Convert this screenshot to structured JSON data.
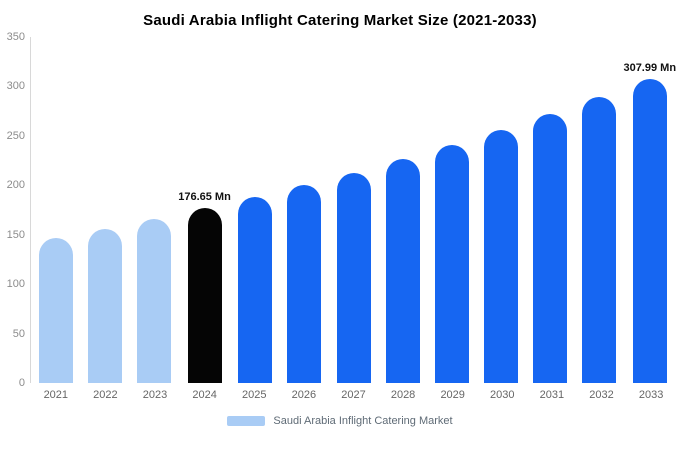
{
  "legend": {
    "label": "Saudi Arabia Inflight Catering Market",
    "swatch_color": "#a9ccf5"
  },
  "chart_data": {
    "type": "bar",
    "title": "Saudi Arabia Inflight Catering Market Size (2021-2033)",
    "unit": "Mn",
    "xlabel": "",
    "ylabel": "",
    "ylim": [
      0,
      350
    ],
    "yticks": [
      0,
      50,
      100,
      150,
      200,
      250,
      300,
      350
    ],
    "grid": false,
    "legend_position": "bottom",
    "colors": {
      "historical": "#a9ccf5",
      "highlight": "#050505",
      "forecast": "#1666f2"
    },
    "points": [
      {
        "year": "2021",
        "value": 146.8,
        "segment": "historical"
      },
      {
        "year": "2022",
        "value": 156.2,
        "segment": "historical"
      },
      {
        "year": "2023",
        "value": 166.1,
        "segment": "historical"
      },
      {
        "year": "2024",
        "value": 176.65,
        "segment": "highlight",
        "label": "176.65 Mn"
      },
      {
        "year": "2025",
        "value": 187.9,
        "segment": "forecast"
      },
      {
        "year": "2026",
        "value": 199.9,
        "segment": "forecast"
      },
      {
        "year": "2027",
        "value": 212.6,
        "segment": "forecast"
      },
      {
        "year": "2028",
        "value": 226.2,
        "segment": "forecast"
      },
      {
        "year": "2029",
        "value": 240.6,
        "segment": "forecast"
      },
      {
        "year": "2030",
        "value": 255.9,
        "segment": "forecast"
      },
      {
        "year": "2031",
        "value": 272.2,
        "segment": "forecast"
      },
      {
        "year": "2032",
        "value": 289.5,
        "segment": "forecast"
      },
      {
        "year": "2033",
        "value": 307.99,
        "segment": "forecast",
        "label": "307.99 Mn"
      }
    ]
  }
}
